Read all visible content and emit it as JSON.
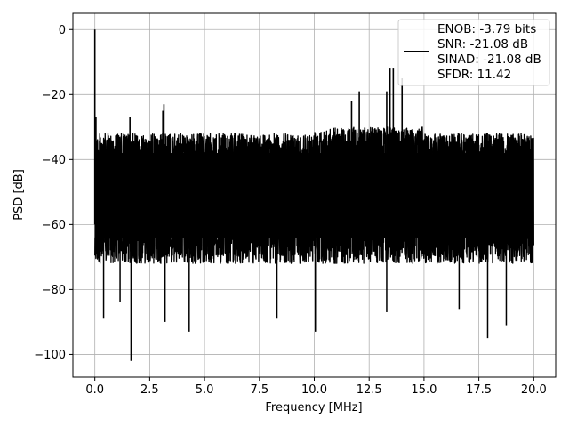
{
  "chart_data": {
    "type": "line",
    "title": "",
    "xlabel": "Frequency [MHz]",
    "ylabel": "PSD [dB]",
    "xlim": [
      -1.0,
      21.0
    ],
    "ylim": [
      -107,
      5
    ],
    "xticks": [
      0.0,
      2.5,
      5.0,
      7.5,
      10.0,
      12.5,
      15.0,
      17.5,
      20.0
    ],
    "xtick_labels": [
      "0.0",
      "2.5",
      "5.0",
      "7.5",
      "10.0",
      "12.5",
      "15.0",
      "17.5",
      "20.0"
    ],
    "yticks": [
      0,
      -20,
      -40,
      -60,
      -80,
      -100
    ],
    "ytick_labels": [
      "0",
      "−20",
      "−40",
      "−60",
      "−80",
      "−100"
    ],
    "grid": true,
    "legend_position": "top-right",
    "series": [
      {
        "name": "",
        "color": "#000000",
        "legend_lines": [
          "ENOB: -3.79 bits",
          "SNR: -21.08 dB",
          "SINAD: -21.08 dB",
          "SFDR: 11.42"
        ],
        "noise_band_db": [
          -68,
          -32
        ],
        "dc_peak": {
          "x": 0.0,
          "y": 0.0
        },
        "spurs": [
          {
            "x": 0.05,
            "y": -27
          },
          {
            "x": 1.6,
            "y": -27
          },
          {
            "x": 3.1,
            "y": -25
          },
          {
            "x": 3.15,
            "y": -23
          },
          {
            "x": 11.7,
            "y": -22
          },
          {
            "x": 12.05,
            "y": -19
          },
          {
            "x": 13.3,
            "y": -19
          },
          {
            "x": 13.45,
            "y": -12
          },
          {
            "x": 13.6,
            "y": -12
          },
          {
            "x": 14.0,
            "y": -15
          }
        ],
        "dips": [
          {
            "x": 0.4,
            "y": -89
          },
          {
            "x": 1.15,
            "y": -84
          },
          {
            "x": 1.65,
            "y": -102
          },
          {
            "x": 3.2,
            "y": -90
          },
          {
            "x": 4.3,
            "y": -93
          },
          {
            "x": 8.3,
            "y": -89
          },
          {
            "x": 10.05,
            "y": -93
          },
          {
            "x": 13.3,
            "y": -87
          },
          {
            "x": 16.6,
            "y": -86
          },
          {
            "x": 17.9,
            "y": -95
          },
          {
            "x": 18.75,
            "y": -91
          }
        ]
      }
    ]
  }
}
